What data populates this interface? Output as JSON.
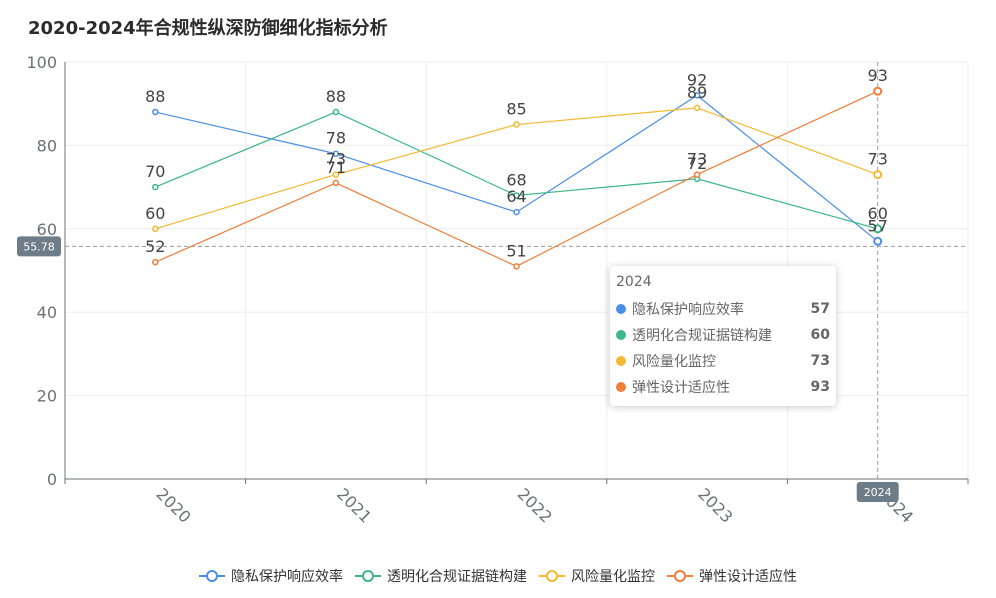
{
  "chart_data": {
    "type": "line",
    "title": "2020-2024年合规性纵深防御细化指标分析",
    "categories": [
      "2020",
      "2021",
      "2022",
      "2023",
      "2024"
    ],
    "ylim": [
      0,
      100
    ],
    "yticks": [
      0,
      20,
      40,
      60,
      80,
      100
    ],
    "grid": true,
    "legend_position": "bottom",
    "series": [
      {
        "name": "隐私保护响应效率",
        "color": "#4a8fe8",
        "values": [
          88,
          78,
          64,
          92,
          57
        ]
      },
      {
        "name": "透明化合规证据链构建",
        "color": "#3cb68a",
        "values": [
          70,
          88,
          68,
          72,
          60
        ]
      },
      {
        "name": "风险量化监控",
        "color": "#f2b933",
        "values": [
          60,
          73,
          85,
          89,
          73
        ]
      },
      {
        "name": "弹性设计适应性",
        "color": "#f07d3a",
        "values": [
          52,
          71,
          51,
          73,
          93
        ]
      }
    ],
    "crosshair": {
      "y_value_label": "55.78",
      "x_category_label": "2024"
    },
    "tooltip": {
      "header": "2024",
      "rows": [
        {
          "name": "隐私保护响应效率",
          "value": "57",
          "color": "#4a8fe8"
        },
        {
          "name": "透明化合规证据链构建",
          "value": "60",
          "color": "#3cb68a"
        },
        {
          "name": "风险量化监控",
          "value": "73",
          "color": "#f2b933"
        },
        {
          "name": "弹性设计适应性",
          "value": "93",
          "color": "#f07d3a"
        }
      ]
    }
  }
}
